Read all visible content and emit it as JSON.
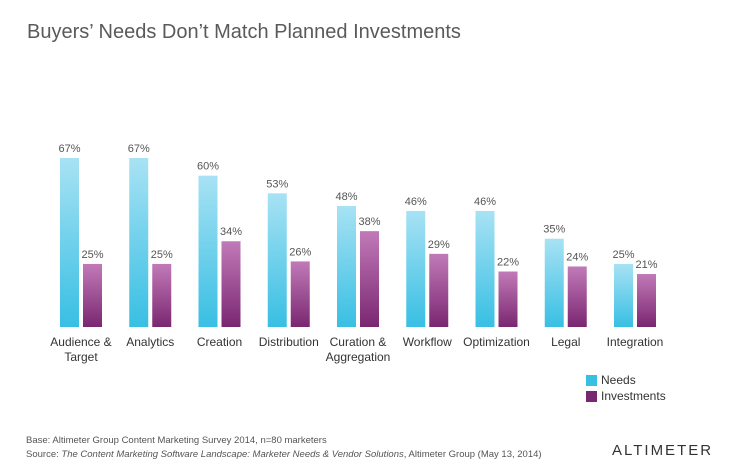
{
  "chart_data": {
    "type": "bar",
    "title": "Buyers’ Needs Don’t Match Planned Investments",
    "xlabel": "",
    "ylabel": "",
    "ylim": [
      0,
      70
    ],
    "grid": false,
    "legend_placement": "bottom-right",
    "categories": [
      [
        "Audience &",
        "Target"
      ],
      [
        "Analytics"
      ],
      [
        "Creation"
      ],
      [
        "Distribution"
      ],
      [
        "Curation &",
        "Aggregation"
      ],
      [
        "Workflow"
      ],
      [
        "Optimization"
      ],
      [
        "Legal"
      ],
      [
        "Integration"
      ]
    ],
    "series": [
      {
        "name": "Needs",
        "values": [
          67,
          67,
          60,
          53,
          48,
          46,
          46,
          35,
          25
        ],
        "labels": [
          "67%",
          "67%",
          "60%",
          "53%",
          "48%",
          "46%",
          "46%",
          "35%",
          "25%"
        ],
        "color_top": "#a8e2f4",
        "color_bottom": "#38bfe3"
      },
      {
        "name": "Investments",
        "values": [
          25,
          25,
          34,
          26,
          38,
          29,
          22,
          24,
          21
        ],
        "labels": [
          "25%",
          "25%",
          "34%",
          "26%",
          "38%",
          "29%",
          "22%",
          "24%",
          "21%"
        ],
        "color_top": "#c17ab8",
        "color_bottom": "#7a2771"
      }
    ]
  },
  "legend": {
    "needs_label": "Needs",
    "investments_label": "Investments",
    "needs_color": "#38bfe3",
    "investments_color": "#7a2771"
  },
  "footer": {
    "base": "Base: Altimeter Group Content Marketing Survey 2014, n=80 marketers",
    "source_prefix": "Source: ",
    "source_title": "The Content Marketing Software Landscape: Marketer Needs & Vendor Solutions",
    "source_suffix": ", Altimeter Group (May 13, 2014)"
  },
  "logo": {
    "text": "ALTIMETER"
  }
}
